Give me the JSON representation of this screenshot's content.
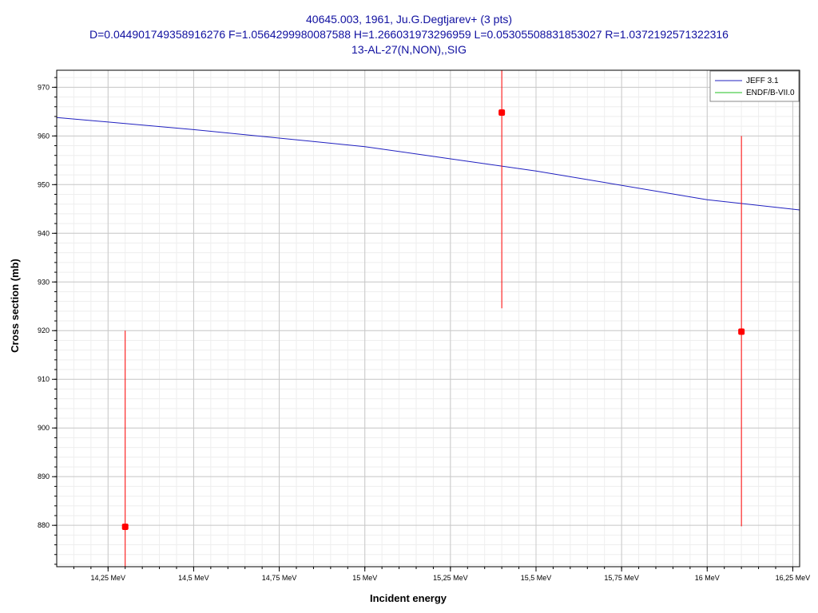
{
  "chart_data": {
    "type": "scatter",
    "title_lines": [
      "40645.003, 1961, Ju.G.Degtjarev+ (3 pts)",
      "D=0.044901749358916276 F=1.0564299980087588 H=1.266031973296959 L=0.05305508831853027 R=1.0372192571322316",
      "13-AL-27(N,NON),,SIG"
    ],
    "xlabel": "Incident energy",
    "ylabel": "Cross section (mb)",
    "xlim": [
      14.1,
      16.27
    ],
    "ylim": [
      871.5,
      973.5
    ],
    "x_ticks": [
      14.25,
      14.5,
      14.75,
      15,
      15.25,
      15.5,
      15.75,
      16,
      16.25
    ],
    "x_tick_labels": [
      "14,25 MeV",
      "14,5 MeV",
      "14,75 MeV",
      "15 MeV",
      "15,25 MeV",
      "15,5 MeV",
      "15,75 MeV",
      "16 MeV",
      "16,25 MeV"
    ],
    "y_ticks": [
      880,
      890,
      900,
      910,
      920,
      930,
      940,
      950,
      960,
      970
    ],
    "y_tick_labels": [
      "880",
      "890",
      "900",
      "910",
      "920",
      "930",
      "940",
      "950",
      "960",
      "970"
    ],
    "grid": true,
    "legend_position": "top-right",
    "legend": [
      {
        "name": "JEFF 3.1",
        "color": "#2020c0"
      },
      {
        "name": "ENDF/B-VII.0",
        "color": "#20c020"
      }
    ],
    "series": [
      {
        "name": "JEFF 3.1",
        "kind": "line",
        "color": "#2020c0",
        "x": [
          14.1,
          14.5,
          15.0,
          15.25,
          15.5,
          16.0,
          16.27
        ],
        "y": [
          963.8,
          961.3,
          957.8,
          955.3,
          952.8,
          946.9,
          944.8
        ]
      },
      {
        "kind": "points",
        "color": "#ff0000",
        "x": [
          14.3,
          15.4,
          16.1
        ],
        "y": [
          879.7,
          964.8,
          919.8
        ],
        "err_low": [
          871.5,
          924.6,
          879.8
        ],
        "err_high": [
          920.0,
          973.5,
          960.0
        ]
      }
    ]
  }
}
